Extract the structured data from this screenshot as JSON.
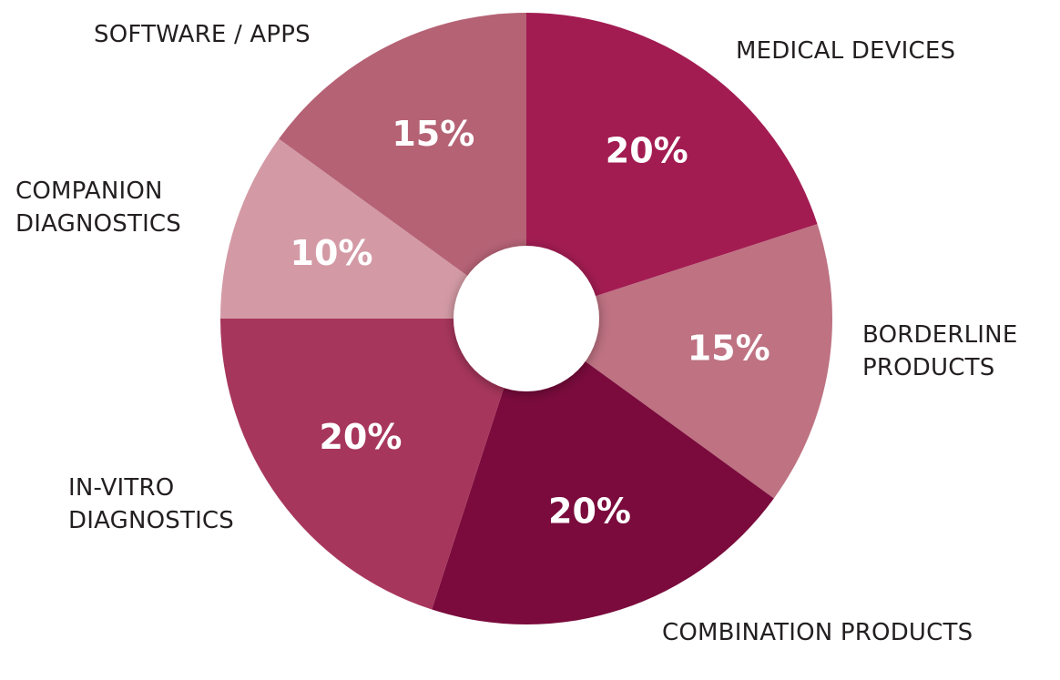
{
  "chart_data": {
    "type": "donut",
    "categories": [
      "MEDICAL DEVICES",
      "BORDERLINE PRODUCTS",
      "COMBINATION PRODUCTS",
      "IN-VITRO DIAGNOSTICS",
      "COMPANION DIAGNOSTICS",
      "SOFTWARE / APPS"
    ],
    "values": [
      20,
      15,
      20,
      20,
      10,
      15
    ],
    "value_labels": [
      "20%",
      "15%",
      "20%",
      "20%",
      "10%",
      "15%"
    ],
    "colors": [
      "#a21c52",
      "#be7282",
      "#7a0b3c",
      "#a7365c",
      "#d39aa5",
      "#b56275"
    ]
  }
}
